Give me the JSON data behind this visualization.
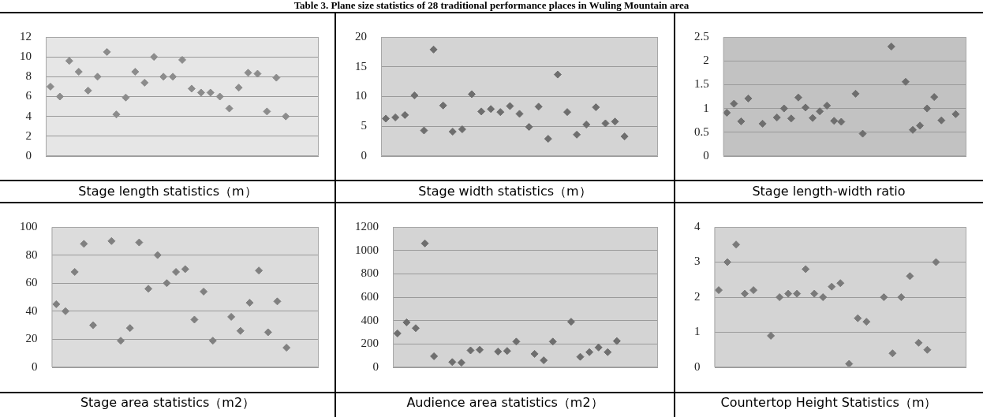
{
  "chart_data": [
    {
      "type": "other",
      "title": "Table 3. Plane size statistics of 28 traditional performance places in Wuling Mountain area"
    },
    {
      "type": "scatter",
      "title": "Stage length statistics（m）",
      "categories": [
        null,
        null,
        null,
        null,
        null,
        null,
        null,
        null,
        null,
        null,
        null,
        null,
        null,
        null,
        null,
        null,
        null,
        null,
        null,
        null,
        null,
        null,
        null,
        null,
        null,
        null,
        null,
        null,
        null
      ],
      "series": [
        {
          "color": "#8c8c8c",
          "values": [
            7.0,
            6.0,
            9.6,
            8.5,
            6.6,
            8.0,
            10.5,
            4.2,
            5.9,
            8.5,
            7.4,
            10.0,
            8.0,
            8.0,
            9.7,
            6.8,
            6.4,
            6.4,
            6.0,
            4.8,
            6.9,
            8.4,
            8.3,
            4.5,
            7.9,
            4.0,
            null,
            null,
            null
          ]
        }
      ],
      "ylim": [
        0,
        12
      ],
      "yticks": [
        0,
        2,
        4,
        6,
        8,
        10,
        12
      ],
      "grid": "y",
      "marker": "diamond",
      "tick_labels": "y"
    },
    {
      "type": "scatter",
      "title": "Stage width statistics（m）",
      "categories": [
        null,
        null,
        null,
        null,
        null,
        null,
        null,
        null,
        null,
        null,
        null,
        null,
        null,
        null,
        null,
        null,
        null,
        null,
        null,
        null,
        null,
        null,
        null,
        null,
        null,
        null,
        null,
        null,
        null
      ],
      "series": [
        {
          "color": "#6e6e6e",
          "values": [
            6.3,
            6.5,
            6.9,
            10.2,
            4.3,
            17.9,
            8.5,
            4.1,
            4.5,
            10.4,
            7.5,
            7.9,
            7.4,
            8.4,
            7.1,
            4.9,
            8.3,
            2.9,
            13.7,
            7.4,
            3.6,
            5.3,
            8.2,
            5.5,
            5.8,
            3.3,
            null,
            null,
            null
          ]
        }
      ],
      "ylim": [
        0,
        20
      ],
      "yticks": [
        0,
        5,
        10,
        15,
        20
      ],
      "grid": "y",
      "marker": "diamond",
      "tick_labels": "y"
    },
    {
      "type": "scatter",
      "title": "Stage length-width ratio",
      "categories": [
        null,
        null,
        null,
        null,
        null,
        null,
        null,
        null,
        null,
        null,
        null,
        null,
        null,
        null,
        null,
        null,
        null,
        null,
        null,
        null,
        null,
        null,
        null,
        null,
        null,
        null,
        null,
        null,
        null,
        null,
        null,
        null,
        null,
        null
      ],
      "series": [
        {
          "color": "#6e6e6e",
          "values": [
            0.91,
            1.1,
            0.73,
            1.21,
            null,
            0.68,
            null,
            0.81,
            1.0,
            0.79,
            1.23,
            1.02,
            0.8,
            0.94,
            1.06,
            0.74,
            0.72,
            null,
            1.31,
            0.47,
            null,
            null,
            null,
            2.3,
            null,
            1.56,
            0.55,
            0.64,
            1.0,
            1.24,
            0.75,
            null,
            0.88,
            null
          ]
        }
      ],
      "ylim": [
        0,
        2.5
      ],
      "yticks": [
        0,
        0.5,
        1,
        1.5,
        2,
        2.5
      ],
      "grid": "y",
      "marker": "diamond",
      "tick_labels": "y"
    },
    {
      "type": "scatter",
      "title": "Stage area statistics（m2）",
      "categories": [
        null,
        null,
        null,
        null,
        null,
        null,
        null,
        null,
        null,
        null,
        null,
        null,
        null,
        null,
        null,
        null,
        null,
        null,
        null,
        null,
        null,
        null,
        null,
        null,
        null,
        null,
        null,
        null,
        null
      ],
      "series": [
        {
          "color": "#808080",
          "values": [
            45,
            40,
            68,
            88,
            30,
            null,
            90,
            19,
            28,
            89,
            56,
            80,
            60,
            68,
            70,
            34,
            54,
            19,
            null,
            36,
            26,
            46,
            69,
            25,
            47,
            14,
            null,
            null,
            null
          ]
        }
      ],
      "ylim": [
        0,
        100
      ],
      "yticks": [
        0,
        20,
        40,
        60,
        80,
        100
      ],
      "grid": "y",
      "marker": "diamond",
      "tick_labels": "y"
    },
    {
      "type": "scatter",
      "title": "Audience area statistics（m2）",
      "categories": [
        null,
        null,
        null,
        null,
        null,
        null,
        null,
        null,
        null,
        null,
        null,
        null,
        null,
        null,
        null,
        null,
        null,
        null,
        null,
        null,
        null,
        null,
        null,
        null,
        null,
        null,
        null,
        null,
        null
      ],
      "series": [
        {
          "color": "#6e6e6e",
          "values": [
            290,
            385,
            335,
            1060,
            95,
            null,
            45,
            40,
            145,
            150,
            null,
            135,
            140,
            220,
            null,
            115,
            60,
            220,
            null,
            390,
            90,
            130,
            170,
            130,
            225,
            null,
            null,
            null,
            null
          ]
        }
      ],
      "ylim": [
        0,
        1200
      ],
      "yticks": [
        0,
        200,
        400,
        600,
        800,
        1000,
        1200
      ],
      "grid": "y",
      "marker": "diamond",
      "tick_labels": "y"
    },
    {
      "type": "scatter",
      "title": "Countertop Height Statistics（m）",
      "categories": [
        null,
        null,
        null,
        null,
        null,
        null,
        null,
        null,
        null,
        null,
        null,
        null,
        null,
        null,
        null,
        null,
        null,
        null,
        null,
        null,
        null,
        null,
        null,
        null,
        null,
        null,
        null,
        null,
        null
      ],
      "series": [
        {
          "color": "#7a7a7a",
          "values": [
            2.2,
            3.0,
            3.5,
            2.1,
            2.2,
            null,
            0.9,
            2.0,
            2.1,
            2.1,
            2.8,
            2.1,
            2.0,
            2.3,
            2.4,
            0.1,
            1.4,
            1.3,
            null,
            2.0,
            0.4,
            2.0,
            2.6,
            0.7,
            0.5,
            3.0,
            null,
            null,
            null
          ]
        }
      ],
      "ylim": [
        0,
        4
      ],
      "yticks": [
        0,
        1,
        2,
        3,
        4
      ],
      "grid": "y",
      "marker": "diamond",
      "tick_labels": "y"
    }
  ]
}
